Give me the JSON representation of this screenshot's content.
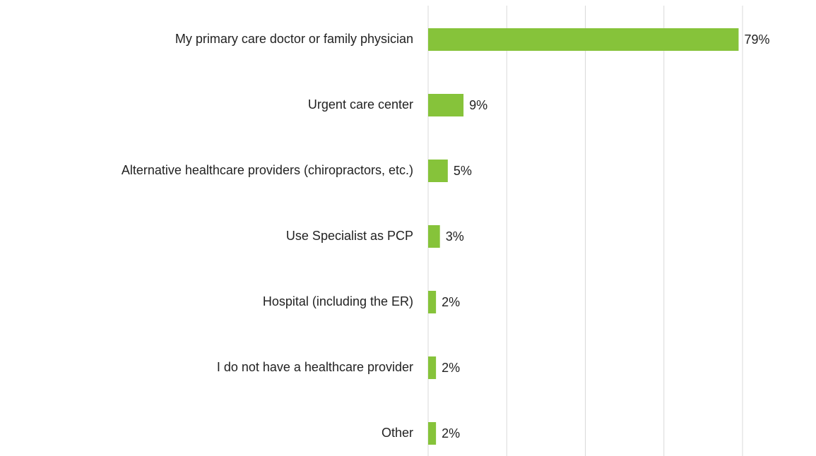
{
  "chart_data": {
    "type": "hbar",
    "categories": [
      "My primary care doctor or family physician",
      "Urgent care center",
      "Alternative healthcare providers (chiropractors, etc.)",
      "Use Specialist as PCP",
      "Hospital (including the ER)",
      "I do not have a healthcare provider",
      "Other"
    ],
    "values": [
      79,
      9,
      5,
      3,
      2,
      2,
      2
    ],
    "value_labels": [
      "79%",
      "9%",
      "5%",
      "3%",
      "2%",
      "2%",
      "2%"
    ],
    "color": "#86c33a",
    "xlim": [
      0,
      80
    ],
    "xticks": [
      0,
      20,
      40,
      60,
      80
    ],
    "grid": true
  }
}
